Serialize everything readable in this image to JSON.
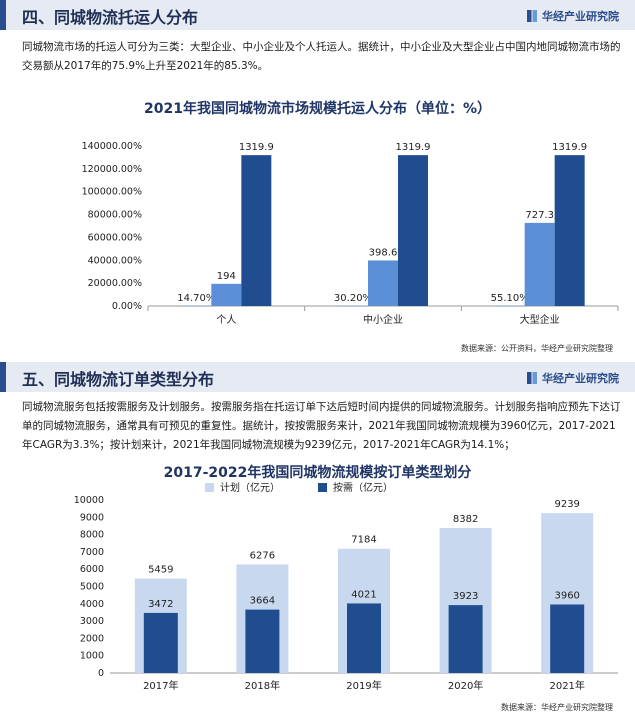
{
  "brand": "华经产业研究院",
  "section4": {
    "title": "四、同城物流托运人分布",
    "paragraph": "同城物流市场的托运人可分为三类：大型企业、中小企业及个人托运人。据统计，中小企业及大型企业占中国内地同城物流市场的交易额从2017年的75.9%上升至2021年的85.3%。",
    "source": "数据来源：公开资料，华经产业研究院整理"
  },
  "section5": {
    "title": "五、同城物流订单类型分布",
    "paragraph": "同城物流服务包括按需服务及计划服务。按需服务指在托运订单下达后短时间内提供的同城物流服务。计划服务指响应预先下达订单的同城物流服务，通常具有可预见的重复性。据统计，按按需服务来计，2021年我国同城物流规模为3960亿元，2017-2021年CAGR为3.3%；按计划来计，2021年我国同城物流规模为9239亿元，2017-2021年CAGR为14.1%；",
    "source": "数据来源：华经产业研究院整理"
  },
  "chart_data": [
    {
      "type": "bar",
      "title": "2021年我国同城物流市场规模托运人分布（单位：%）",
      "categories": [
        "个人",
        "中小企业",
        "大型企业"
      ],
      "ylim": [
        0,
        140000
      ],
      "yticks": [
        "0.00%",
        "20000.00%",
        "40000.00%",
        "60000.00%",
        "80000.00%",
        "100000.00%",
        "120000.00%",
        "140000.00%"
      ],
      "grid": false,
      "legend": "none",
      "series": [
        {
          "values": [
            14.7,
            30.2,
            55.1
          ],
          "labels": [
            "14.70%",
            "30.20%",
            "55.10%"
          ],
          "color": "#5b8fd8"
        },
        {
          "values": [
            19400,
            39860,
            72730
          ],
          "labels": [
            "194",
            "398.6",
            "727.3"
          ],
          "color": "#5b8fd8"
        },
        {
          "values": [
            131990,
            131990,
            131990
          ],
          "labels": [
            "1319.9",
            "1319.9",
            "1319.9"
          ],
          "color": "#1f4d8f"
        }
      ]
    },
    {
      "type": "bar",
      "title": "2017-2022年我国同城物流规模按订单类型划分",
      "categories": [
        "2017年",
        "2018年",
        "2019年",
        "2020年",
        "2021年"
      ],
      "ylim": [
        0,
        10000
      ],
      "yticks": [
        "0",
        "1000",
        "2000",
        "3000",
        "4000",
        "5000",
        "6000",
        "7000",
        "8000",
        "9000",
        "10000"
      ],
      "grid": false,
      "legend": "top",
      "series": [
        {
          "name": "计划（亿元）",
          "values": [
            5459,
            6276,
            7184,
            8382,
            9239
          ],
          "color": "#c8d8ef"
        },
        {
          "name": "按需（亿元）",
          "values": [
            3472,
            3664,
            4021,
            3923,
            3960
          ],
          "color": "#1f4d8f"
        }
      ]
    }
  ]
}
